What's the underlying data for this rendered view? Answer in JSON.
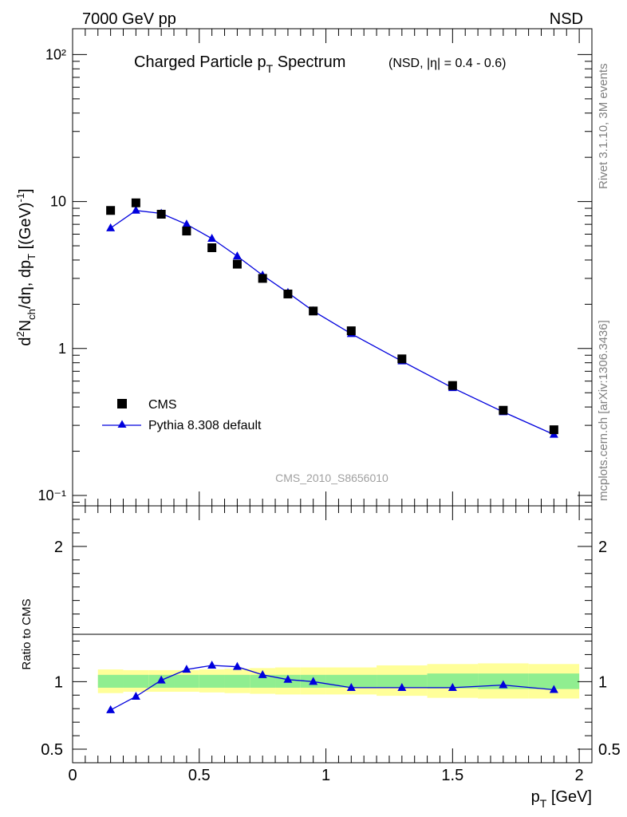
{
  "header": {
    "left": "7000 GeV pp",
    "right": "NSD"
  },
  "side_text": {
    "top": "Rivet 3.1.10,  3M events",
    "bottom": "mcplots.cern.ch [arXiv:1306.3436]"
  },
  "chart_data": [
    {
      "panel": "main",
      "type": "scatter",
      "title": "Charged Particle p",
      "title_sub": "T",
      "title_rest": " Spectrum",
      "title_note": "(NSD, |η| = 0.4 - 0.6)",
      "ylabel": "d²N_ch/dη, dp_T [(GeV)⁻¹]",
      "yscale": "log",
      "ylim": [
        0.085,
        150
      ],
      "xlim": [
        0,
        2.05
      ],
      "ytick_labels": [
        "10⁻¹",
        "1",
        "10",
        "10²"
      ],
      "watermark": "CMS_2010_S8656010",
      "legend_position": "lower-left",
      "series": [
        {
          "name": "CMS",
          "color": "#000000",
          "marker": "square",
          "x": [
            0.15,
            0.25,
            0.35,
            0.45,
            0.55,
            0.65,
            0.75,
            0.85,
            0.95,
            1.1,
            1.3,
            1.5,
            1.7,
            1.9
          ],
          "y": [
            8.7,
            9.8,
            8.2,
            6.3,
            4.85,
            3.75,
            3.0,
            2.35,
            1.8,
            1.32,
            0.85,
            0.56,
            0.38,
            0.28
          ]
        },
        {
          "name": "Pythia 8.308 default",
          "color": "#0000dd",
          "marker": "triangle",
          "x": [
            0.15,
            0.25,
            0.35,
            0.45,
            0.55,
            0.65,
            0.75,
            0.85,
            0.95,
            1.1,
            1.3,
            1.5,
            1.7,
            1.9
          ],
          "y": [
            6.6,
            8.7,
            8.3,
            7.0,
            5.6,
            4.25,
            3.15,
            2.4,
            1.8,
            1.26,
            0.82,
            0.54,
            0.37,
            0.26
          ]
        }
      ]
    },
    {
      "panel": "ratio",
      "type": "line",
      "ylabel": "Ratio to CMS",
      "xlabel": "p_T [GeV]",
      "ylim": [
        0.4,
        2.3
      ],
      "xlim": [
        0,
        2.05
      ],
      "yticks": [
        0.5,
        1,
        2
      ],
      "ytick_labels": [
        "0.5",
        "1",
        "2"
      ],
      "xticks": [
        0,
        0.5,
        1,
        1.5,
        2
      ],
      "xtick_labels": [
        "0",
        "0.5",
        "1",
        "1.5",
        "2"
      ],
      "bands": {
        "bin_edges": [
          0.1,
          0.2,
          0.3,
          0.4,
          0.5,
          0.6,
          0.7,
          0.8,
          0.9,
          1.0,
          1.2,
          1.4,
          1.6,
          1.8,
          2.0
        ],
        "stat_color": "#90ee90",
        "syst_color": "#ffff99",
        "inner_lo": [
          0.955,
          0.955,
          0.955,
          0.955,
          0.955,
          0.955,
          0.955,
          0.955,
          0.955,
          0.955,
          0.955,
          0.95,
          0.945,
          0.945
        ],
        "inner_hi": [
          1.05,
          1.05,
          1.05,
          1.05,
          1.05,
          1.05,
          1.05,
          1.05,
          1.05,
          1.05,
          1.05,
          1.06,
          1.06,
          1.06
        ],
        "outer_lo": [
          0.915,
          0.925,
          0.925,
          0.925,
          0.92,
          0.915,
          0.91,
          0.905,
          0.905,
          0.905,
          0.895,
          0.88,
          0.875,
          0.875
        ],
        "outer_hi": [
          1.09,
          1.085,
          1.085,
          1.085,
          1.09,
          1.095,
          1.1,
          1.105,
          1.105,
          1.105,
          1.12,
          1.13,
          1.135,
          1.13
        ]
      },
      "series": [
        {
          "name": "Pythia 8.308 default",
          "color": "#0000dd",
          "marker": "triangle",
          "x": [
            0.15,
            0.25,
            0.35,
            0.45,
            0.55,
            0.65,
            0.75,
            0.85,
            0.95,
            1.1,
            1.3,
            1.5,
            1.7,
            1.9
          ],
          "y": [
            0.79,
            0.89,
            1.01,
            1.09,
            1.12,
            1.11,
            1.05,
            1.015,
            1.0,
            0.955,
            0.955,
            0.955,
            0.975,
            0.94
          ]
        }
      ]
    }
  ]
}
